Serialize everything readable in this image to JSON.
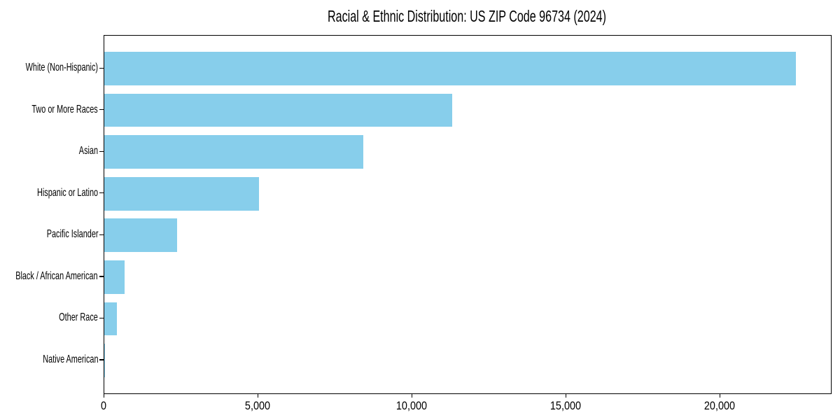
{
  "title": "Racial & Ethnic Distribution: US ZIP Code 96734 (2024)",
  "colors": {
    "bar_fill": "#87CEEB",
    "axis": "#000000",
    "background": "#FFFFFF",
    "text": "#000000"
  },
  "chart_data": {
    "type": "bar",
    "orientation": "horizontal",
    "title": "Racial & Ethnic Distribution: US ZIP Code 96734 (2024)",
    "categories": [
      "White (Non-Hispanic)",
      "Two or More Races",
      "Asian",
      "Hispanic or Latino",
      "Pacific Islander",
      "Black / African American",
      "Other Race",
      "Native American"
    ],
    "values": [
      22455,
      11290,
      8405,
      5020,
      2365,
      650,
      410,
      30
    ],
    "xlabel": "",
    "ylabel": "",
    "xlim": [
      0,
      23590
    ],
    "xticks": [
      0,
      5000,
      10000,
      15000,
      20000
    ],
    "xtick_labels": [
      "0",
      "5,000",
      "10,000",
      "15,000",
      "20,000"
    ],
    "grid": false,
    "legend": null,
    "bar_color": "#87CEEB",
    "bar_height_fraction": 0.8
  }
}
